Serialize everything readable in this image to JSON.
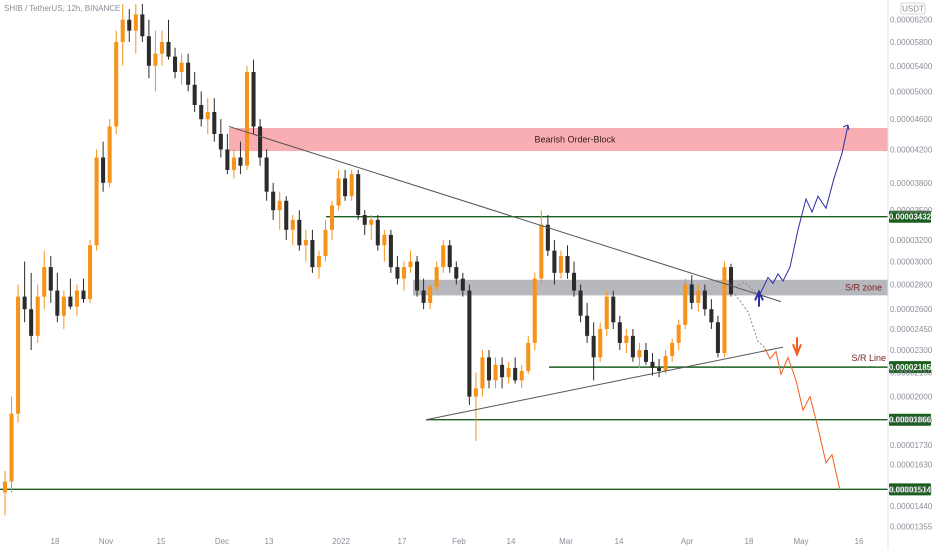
{
  "header": {
    "title": "SHIB / TetherUS, 12h, BINANCE",
    "currency": "USDT"
  },
  "colors": {
    "up_candle": "#f7931a",
    "down_candle": "#2b2b2b",
    "support_line": "#1b5e20",
    "trendline": "#555555",
    "bearish_zone": "#f8a5ab",
    "sr_zone": "#a9abb3",
    "bullish_path": "#2b2fa6",
    "bearish_path": "#f45d1e",
    "arrow_up": "#2b2fa6",
    "arrow_down": "#f45d1e",
    "tag_bg": "#1b5e20"
  },
  "chart_data": {
    "type": "candlestick",
    "title": "SHIB / TetherUS, 12h, BINANCE",
    "y_axis_ticks": [
      "0.00006200",
      "0.00005800",
      "0.00005400",
      "0.00005000",
      "0.00004600",
      "0.00004200",
      "0.00003800",
      "0.00003500",
      "0.00003200",
      "0.00003000",
      "0.00002800",
      "0.00002600",
      "0.00002450",
      "0.00002300",
      "0.00002150",
      "0.00002000",
      "0.00001866",
      "0.00001730",
      "0.00001630",
      "0.00001514",
      "0.00001440",
      "0.00001355"
    ],
    "x_axis_ticks": [
      "18",
      "Nov",
      "15",
      "Dec",
      "13",
      "2022",
      "17",
      "Feb",
      "14",
      "Mar",
      "14",
      "Apr",
      "18",
      "May",
      "16"
    ],
    "y_scale": "log",
    "ylim": [
      1.34e-05,
      6.5e-05
    ],
    "price_levels": [
      {
        "label": "0.00003432",
        "value": 3.432e-05
      },
      {
        "label": "0.00002185",
        "value": 2.185e-05
      },
      {
        "label": "0.00001866",
        "value": 1.866e-05
      },
      {
        "label": "0.00001514",
        "value": 1.514e-05
      }
    ],
    "zones": [
      {
        "label": "Bearish Order-Block",
        "low": 4.18e-05,
        "high": 4.48e-05
      },
      {
        "label": "S/R zone",
        "low": 2.71e-05,
        "high": 2.84e-05
      }
    ],
    "annotations": [
      "S/R Line"
    ],
    "candles": [
      [
        1.5e-05,
        1.6e-05,
        1.4e-05,
        1.55e-05
      ],
      [
        1.55e-05,
        2e-05,
        1.5e-05,
        1.9e-05
      ],
      [
        1.9e-05,
        2.8e-05,
        1.85e-05,
        2.7e-05
      ],
      [
        2.7e-05,
        3e-05,
        2.5e-05,
        2.6e-05
      ],
      [
        2.6e-05,
        2.9e-05,
        2.3e-05,
        2.4e-05
      ],
      [
        2.4e-05,
        2.8e-05,
        2.35e-05,
        2.7e-05
      ],
      [
        2.7e-05,
        3.1e-05,
        2.6e-05,
        2.95e-05
      ],
      [
        2.95e-05,
        3.05e-05,
        2.65e-05,
        2.75e-05
      ],
      [
        2.75e-05,
        2.9e-05,
        2.5e-05,
        2.55e-05
      ],
      [
        2.55e-05,
        2.75e-05,
        2.45e-05,
        2.7e-05
      ],
      [
        2.7e-05,
        2.85e-05,
        2.6e-05,
        2.62e-05
      ],
      [
        2.62e-05,
        2.8e-05,
        2.55e-05,
        2.75e-05
      ],
      [
        2.75e-05,
        2.85e-05,
        2.65e-05,
        2.68e-05
      ],
      [
        2.68e-05,
        3.2e-05,
        2.65e-05,
        3.15e-05
      ],
      [
        3.15e-05,
        4.2e-05,
        3.1e-05,
        4.1e-05
      ],
      [
        4.1e-05,
        4.3e-05,
        3.7e-05,
        3.8e-05
      ],
      [
        3.8e-05,
        4.6e-05,
        3.75e-05,
        4.5e-05
      ],
      [
        4.5e-05,
        6e-05,
        4.4e-05,
        5.8e-05
      ],
      [
        5.8e-05,
        6.5e-05,
        5.4e-05,
        6.2e-05
      ],
      [
        6.2e-05,
        6.4e-05,
        5.8e-05,
        6e-05
      ],
      [
        6e-05,
        6.5e-05,
        5.6e-05,
        6.3e-05
      ],
      [
        6.3e-05,
        6.5e-05,
        5.8e-05,
        5.9e-05
      ],
      [
        5.9e-05,
        6.2e-05,
        5.2e-05,
        5.4e-05
      ],
      [
        5.4e-05,
        6e-05,
        5e-05,
        5.6e-05
      ],
      [
        5.6e-05,
        6e-05,
        5.4e-05,
        5.8e-05
      ],
      [
        5.8e-05,
        6.2e-05,
        5.5e-05,
        5.55e-05
      ],
      [
        5.55e-05,
        5.7e-05,
        5.2e-05,
        5.3e-05
      ],
      [
        5.3e-05,
        5.6e-05,
        5.1e-05,
        5.45e-05
      ],
      [
        5.45e-05,
        5.6e-05,
        5e-05,
        5.1e-05
      ],
      [
        5.1e-05,
        5.3e-05,
        4.7e-05,
        4.8e-05
      ],
      [
        4.8e-05,
        5e-05,
        4.5e-05,
        4.6e-05
      ],
      [
        4.6e-05,
        4.9e-05,
        4.4e-05,
        4.7e-05
      ],
      [
        4.7e-05,
        4.9e-05,
        4.3e-05,
        4.4e-05
      ],
      [
        4.4e-05,
        4.6e-05,
        4.1e-05,
        4.2e-05
      ],
      [
        4.2e-05,
        4.4e-05,
        3.9e-05,
        3.95e-05
      ],
      [
        3.95e-05,
        4.2e-05,
        3.85e-05,
        4.1e-05
      ],
      [
        4.1e-05,
        4.3e-05,
        3.9e-05,
        4e-05
      ],
      [
        4e-05,
        5.4e-05,
        3.95e-05,
        5.3e-05
      ],
      [
        5.3e-05,
        5.5e-05,
        4.4e-05,
        4.5e-05
      ],
      [
        4.5e-05,
        4.6e-05,
        4e-05,
        4.1e-05
      ],
      [
        4.1e-05,
        4.2e-05,
        3.6e-05,
        3.7e-05
      ],
      [
        3.7e-05,
        3.8e-05,
        3.4e-05,
        3.5e-05
      ],
      [
        3.5e-05,
        3.7e-05,
        3.3e-05,
        3.6e-05
      ],
      [
        3.6e-05,
        3.65e-05,
        3.2e-05,
        3.3e-05
      ],
      [
        3.3e-05,
        3.45e-05,
        3.15e-05,
        3.4e-05
      ],
      [
        3.4e-05,
        3.5e-05,
        3.1e-05,
        3.15e-05
      ],
      [
        3.15e-05,
        3.3e-05,
        3e-05,
        3.2e-05
      ],
      [
        3.2e-05,
        3.3e-05,
        2.9e-05,
        2.95e-05
      ],
      [
        2.95e-05,
        3.1e-05,
        2.85e-05,
        3.05e-05
      ],
      [
        3.05e-05,
        3.4e-05,
        3e-05,
        3.3e-05
      ],
      [
        3.3e-05,
        3.6e-05,
        3.2e-05,
        3.55e-05
      ],
      [
        3.55e-05,
        3.95e-05,
        3.5e-05,
        3.85e-05
      ],
      [
        3.85e-05,
        3.95e-05,
        3.6e-05,
        3.65e-05
      ],
      [
        3.65e-05,
        3.95e-05,
        3.6e-05,
        3.9e-05
      ],
      [
        3.9e-05,
        3.95e-05,
        3.4e-05,
        3.45e-05
      ],
      [
        3.45e-05,
        3.5e-05,
        3.25e-05,
        3.35e-05
      ],
      [
        3.35e-05,
        3.45e-05,
        3.2e-05,
        3.4e-05
      ],
      [
        3.4e-05,
        3.45e-05,
        3.1e-05,
        3.15e-05
      ],
      [
        3.15e-05,
        3.3e-05,
        3e-05,
        3.25e-05
      ],
      [
        3.25e-05,
        3.3e-05,
        2.9e-05,
        2.95e-05
      ],
      [
        2.95e-05,
        3.05e-05,
        2.8e-05,
        2.85e-05
      ],
      [
        2.85e-05,
        3e-05,
        2.75e-05,
        2.95e-05
      ],
      [
        2.95e-05,
        3.1e-05,
        2.9e-05,
        3e-05
      ],
      [
        3e-05,
        3.05e-05,
        2.7e-05,
        2.75e-05
      ],
      [
        2.75e-05,
        2.85e-05,
        2.6e-05,
        2.65e-05
      ],
      [
        2.65e-05,
        2.8e-05,
        2.6e-05,
        2.78e-05
      ],
      [
        2.78e-05,
        3e-05,
        2.75e-05,
        2.95e-05
      ],
      [
        2.95e-05,
        3.2e-05,
        2.9e-05,
        3.15e-05
      ],
      [
        3.15e-05,
        3.2e-05,
        2.9e-05,
        2.95e-05
      ],
      [
        2.95e-05,
        3e-05,
        2.8e-05,
        2.85e-05
      ],
      [
        2.85e-05,
        2.9e-05,
        2.7e-05,
        2.75e-05
      ],
      [
        2.75e-05,
        2.8e-05,
        1.95e-05,
        2e-05
      ],
      [
        2e-05,
        2.15e-05,
        1.75e-05,
        2.05e-05
      ],
      [
        2.05e-05,
        2.3e-05,
        2e-05,
        2.25e-05
      ],
      [
        2.25e-05,
        2.3e-05,
        2.05e-05,
        2.1e-05
      ],
      [
        2.1e-05,
        2.25e-05,
        2.05e-05,
        2.2e-05
      ],
      [
        2.2e-05,
        2.25e-05,
        2.05e-05,
        2.12e-05
      ],
      [
        2.12e-05,
        2.22e-05,
        2.08e-05,
        2.18e-05
      ],
      [
        2.18e-05,
        2.25e-05,
        2.08e-05,
        2.1e-05
      ],
      [
        2.1e-05,
        2.2e-05,
        2.05e-05,
        2.16e-05
      ],
      [
        2.16e-05,
        2.4e-05,
        2.14e-05,
        2.35e-05
      ],
      [
        2.35e-05,
        2.9e-05,
        2.3e-05,
        2.85e-05
      ],
      [
        2.85e-05,
        3.5e-05,
        2.8e-05,
        3.35e-05
      ],
      [
        3.35e-05,
        3.45e-05,
        3.05e-05,
        3.1e-05
      ],
      [
        3.1e-05,
        3.2e-05,
        2.8e-05,
        2.9e-05
      ],
      [
        2.9e-05,
        3.1e-05,
        2.85e-05,
        3.05e-05
      ],
      [
        3.05e-05,
        3.15e-05,
        2.85e-05,
        2.9e-05
      ],
      [
        2.9e-05,
        3e-05,
        2.7e-05,
        2.75e-05
      ],
      [
        2.75e-05,
        2.8e-05,
        2.5e-05,
        2.55e-05
      ],
      [
        2.55e-05,
        2.65e-05,
        2.35e-05,
        2.4e-05
      ],
      [
        2.4e-05,
        2.5e-05,
        2.1e-05,
        2.25e-05
      ],
      [
        2.25e-05,
        2.5e-05,
        2.22e-05,
        2.45e-05
      ],
      [
        2.45e-05,
        2.75e-05,
        2.4e-05,
        2.7e-05
      ],
      [
        2.7e-05,
        2.75e-05,
        2.45e-05,
        2.5e-05
      ],
      [
        2.5e-05,
        2.55e-05,
        2.3e-05,
        2.35e-05
      ],
      [
        2.35e-05,
        2.45e-05,
        2.28e-05,
        2.4e-05
      ],
      [
        2.4e-05,
        2.45e-05,
        2.22e-05,
        2.25e-05
      ],
      [
        2.25e-05,
        2.35e-05,
        2.18e-05,
        2.3e-05
      ],
      [
        2.3e-05,
        2.35e-05,
        2.2e-05,
        2.22e-05
      ],
      [
        2.22e-05,
        2.28e-05,
        2.13e-05,
        2.18e-05
      ],
      [
        2.18e-05,
        2.24e-05,
        2.12e-05,
        2.16e-05
      ],
      [
        2.16e-05,
        2.3e-05,
        2.14e-05,
        2.26e-05
      ],
      [
        2.26e-05,
        2.38e-05,
        2.22e-05,
        2.35e-05
      ],
      [
        2.35e-05,
        2.52e-05,
        2.3e-05,
        2.48e-05
      ],
      [
        2.48e-05,
        2.85e-05,
        2.45e-05,
        2.8e-05
      ],
      [
        2.8e-05,
        2.88e-05,
        2.6e-05,
        2.65e-05
      ],
      [
        2.65e-05,
        2.8e-05,
        2.58e-05,
        2.75e-05
      ],
      [
        2.75e-05,
        2.8e-05,
        2.55e-05,
        2.6e-05
      ],
      [
        2.6e-05,
        2.68e-05,
        2.45e-05,
        2.5e-05
      ],
      [
        2.5e-05,
        2.55e-05,
        2.25e-05,
        2.28e-05
      ],
      [
        2.28e-05,
        3e-05,
        2.25e-05,
        2.95e-05
      ],
      [
        2.95e-05,
        2.98e-05,
        2.7e-05,
        2.72e-05
      ]
    ]
  }
}
